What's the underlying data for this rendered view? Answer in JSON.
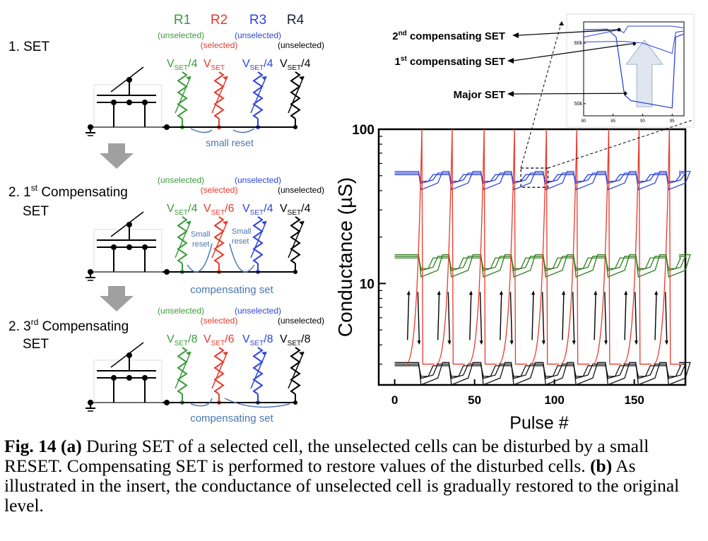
{
  "panel_a": {
    "columns": [
      {
        "name": "R1",
        "color": "#3a9b3a"
      },
      {
        "name": "R2",
        "color": "#e8392b"
      },
      {
        "name": "R3",
        "color": "#2d45d9"
      },
      {
        "name": "R4",
        "color": "#1a1f3a"
      }
    ],
    "stages": [
      {
        "title_lines": [
          "1. SET"
        ],
        "labels": [
          "(unselected)",
          "(selected)",
          "(unselected)",
          "(unselected)"
        ],
        "voltages": [
          {
            "base": "V",
            "sub": "SET",
            "suffix": "/4"
          },
          {
            "base": "V",
            "sub": "SET",
            "suffix": ""
          },
          {
            "base": "V",
            "sub": "SET",
            "suffix": "/4"
          },
          {
            "base": "V",
            "sub": "SET",
            "suffix": "/4"
          }
        ],
        "annotations": [
          "small reset"
        ]
      },
      {
        "title_lines": [
          "2. 1st Compensating",
          "SET"
        ],
        "title_sup": "st",
        "labels": [
          "(unselected)",
          "(selected)",
          "(unselected)",
          "(unselected)"
        ],
        "voltages": [
          {
            "base": "V",
            "sub": "SET",
            "suffix": "/4"
          },
          {
            "base": "V",
            "sub": "SET",
            "suffix": "/6"
          },
          {
            "base": "V",
            "sub": "SET",
            "suffix": "/4"
          },
          {
            "base": "V",
            "sub": "SET",
            "suffix": "/4"
          }
        ],
        "annotations": [
          "compensating set",
          "Small",
          "reset",
          "Small",
          "reset"
        ]
      },
      {
        "title_lines": [
          "2.  3rd Compensating",
          "SET"
        ],
        "title_sup": "rd",
        "labels": [
          "(unselected)",
          "(selected)",
          "(unselected)",
          "(unselected)"
        ],
        "voltages": [
          {
            "base": "V",
            "sub": "SET",
            "suffix": "/8"
          },
          {
            "base": "V",
            "sub": "SET",
            "suffix": "/6"
          },
          {
            "base": "V",
            "sub": "SET",
            "suffix": "/8"
          },
          {
            "base": "V",
            "sub": "SET",
            "suffix": "/8"
          }
        ],
        "annotations": [
          "compensating set"
        ]
      }
    ]
  },
  "callouts": [
    {
      "text": "2nd compensating SET",
      "pre": "2",
      "sup": "nd",
      "post": " compensating SET"
    },
    {
      "text": "1st compensating SET",
      "pre": "1",
      "sup": "st",
      "post": " compensating SET"
    },
    {
      "text": "Major SET",
      "pre": "Major SET",
      "sup": "",
      "post": ""
    }
  ],
  "chart_data": [
    {
      "type": "line",
      "xlabel": "Pulse #",
      "ylabel": "Conductance (µS)",
      "x_ticks": [
        0,
        50,
        100,
        150
      ],
      "y_ticks": [
        10,
        100
      ],
      "y_scale": "log",
      "xlim": [
        -10,
        182
      ],
      "ylim": [
        2.2,
        100
      ],
      "grid": false,
      "series_levels": [
        {
          "color": "#2d45d9",
          "level": 52,
          "dip": 46
        },
        {
          "color": "#2e7d1e",
          "level": 15,
          "dip": 12.5
        },
        {
          "color": "#111111",
          "level": 3,
          "dip": 2.5
        }
      ],
      "spike_series": {
        "color": "#e8392b",
        "x": [
          17,
          36,
          56,
          75,
          95,
          114,
          134,
          153,
          172
        ],
        "peak": 100,
        "base": 3
      }
    },
    {
      "type": "line",
      "role": "insert",
      "x_ticks": [
        80,
        85,
        90,
        95
      ],
      "y_ticks_labels": [
        "60k",
        "50k"
      ],
      "y_ticks": [
        60000,
        50000
      ],
      "xlim": [
        80,
        97
      ],
      "ylim": [
        48000,
        63500
      ]
    }
  ],
  "caption": {
    "fig_label": "Fig. 14 (a)",
    "text_a": " During SET of a selected cell, the unselected cells can be disturbed by a small RESET. Compensating SET is performed to restore values of the disturbed cells. ",
    "label_b": "(b)",
    "text_b": " As illustrated in the insert, the conductance of unselected cell is gradually restored to the original level."
  }
}
